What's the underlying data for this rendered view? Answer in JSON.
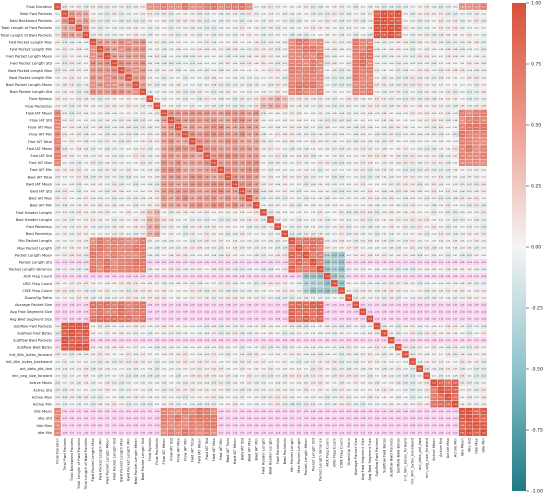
{
  "chart_data": {
    "type": "heatmap",
    "title": "",
    "xlabel": "",
    "ylabel": "",
    "labels": [
      "Flow Duration",
      "Total Fwd Packets",
      "Total Backward Packets",
      "Total Length of Fwd Packets",
      "Total Length of Bwd Packets",
      "Fwd Packet Length Max",
      "Fwd Packet Length Min",
      "Fwd Packet Length Mean",
      "Fwd Packet Length Std",
      "Bwd Packet Length Max",
      "Bwd Packet Length Min",
      "Bwd Packet Length Mean",
      "Bwd Packet Length Std",
      "Flow Bytes/s",
      "Flow Packets/s",
      "Flow IAT Mean",
      "Flow IAT Std",
      "Flow IAT Max",
      "Flow IAT Min",
      "Fwd IAT Total",
      "Fwd IAT Mean",
      "Fwd IAT Std",
      "Fwd IAT Max",
      "Fwd IAT Min",
      "Bwd IAT Total",
      "Bwd IAT Mean",
      "Bwd IAT Std",
      "Bwd IAT Max",
      "Bwd IAT Min",
      "Fwd Header Length",
      "Bwd Header Length",
      "Fwd Packets/s",
      "Bwd Packets/s",
      "Min Packet Length",
      "Max Packet Length",
      "Packet Length Mean",
      "Packet Length Std",
      "Packet Length Variance",
      "ACK Flag Count",
      "URG Flag Count",
      "CWE Flag Count",
      "Down/Up Ratio",
      "Average Packet Size",
      "Avg Fwd Segment Size",
      "Avg Bwd Segment Size",
      "Subflow Fwd Packets",
      "Subflow Fwd Bytes",
      "Subflow Bwd Packets",
      "Subflow Bwd Bytes",
      "Init_Win_bytes_forward",
      "Init_Win_bytes_backward",
      "act_data_pkt_fwd",
      "min_seg_size_forward",
      "Active Mean",
      "Active Std",
      "Active Max",
      "Active Min",
      "Idle Mean",
      "Idle Std",
      "Idle Max",
      "Idle Min"
    ],
    "colorbar": {
      "min": -1.0,
      "max": 1.0,
      "ticks": [
        -1.0,
        -0.75,
        -0.5,
        -0.25,
        0.0,
        0.25,
        0.5,
        0.75,
        1.0
      ],
      "tick_labels": [
        "-1.00",
        "-0.75",
        "-0.50",
        "-0.25",
        "0.00",
        "0.25",
        "0.50",
        "0.75",
        "1.00"
      ],
      "colors": {
        "negative": "#1f7a87",
        "neutral": "#f4f4f4",
        "positive": "#d9503b"
      }
    },
    "highlight_color": "#ff55dd",
    "clusters": [
      {
        "rows": [
          0,
          0
        ],
        "cols": [
          13,
          27
        ],
        "value": 0.7
      },
      {
        "rows": [
          0,
          0
        ],
        "cols": [
          57,
          60
        ],
        "value": 0.65
      },
      {
        "rows": [
          1,
          4
        ],
        "cols": [
          1,
          4
        ],
        "value": 0.45
      },
      {
        "rows": [
          1,
          4
        ],
        "cols": [
          45,
          48
        ],
        "value": 0.95
      },
      {
        "rows": [
          5,
          12
        ],
        "cols": [
          5,
          12
        ],
        "value": 0.55
      },
      {
        "rows": [
          5,
          12
        ],
        "cols": [
          33,
          37
        ],
        "value": 0.7
      },
      {
        "rows": [
          5,
          12
        ],
        "cols": [
          42,
          44
        ],
        "value": 0.75
      },
      {
        "rows": [
          15,
          28
        ],
        "cols": [
          15,
          28
        ],
        "value": 0.5
      },
      {
        "rows": [
          15,
          22
        ],
        "cols": [
          0,
          0
        ],
        "value": 0.65
      },
      {
        "rows": [
          15,
          22
        ],
        "cols": [
          57,
          60
        ],
        "value": 0.7
      },
      {
        "rows": [
          33,
          37
        ],
        "cols": [
          33,
          37
        ],
        "value": 0.8
      },
      {
        "rows": [
          33,
          37
        ],
        "cols": [
          5,
          12
        ],
        "value": 0.7
      },
      {
        "rows": [
          42,
          44
        ],
        "cols": [
          5,
          12
        ],
        "value": 0.75
      },
      {
        "rows": [
          42,
          44
        ],
        "cols": [
          33,
          37
        ],
        "value": 0.85
      },
      {
        "rows": [
          45,
          48
        ],
        "cols": [
          1,
          4
        ],
        "value": 0.95
      },
      {
        "rows": [
          53,
          56
        ],
        "cols": [
          53,
          56
        ],
        "value": 0.8
      },
      {
        "rows": [
          57,
          60
        ],
        "cols": [
          57,
          60
        ],
        "value": 0.95
      },
      {
        "rows": [
          57,
          60
        ],
        "cols": [
          0,
          0
        ],
        "value": 0.65
      },
      {
        "rows": [
          57,
          60
        ],
        "cols": [
          15,
          22
        ],
        "value": 0.7
      },
      {
        "rows": [
          35,
          40
        ],
        "cols": [
          38,
          40
        ],
        "value": -0.35
      },
      {
        "rows": [
          38,
          40
        ],
        "cols": [
          35,
          37
        ],
        "value": -0.35
      },
      {
        "rows": [
          13,
          14
        ],
        "cols": [
          29,
          32
        ],
        "value": 0.35
      },
      {
        "rows": [
          29,
          32
        ],
        "cols": [
          13,
          14
        ],
        "value": 0.35
      }
    ],
    "highlighted_rows": [
      36,
      38,
      42,
      43,
      44,
      47,
      57,
      58,
      59,
      60
    ]
  }
}
